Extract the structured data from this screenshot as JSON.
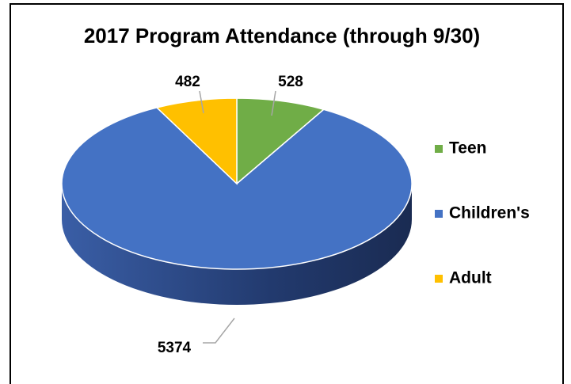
{
  "chart_data": {
    "type": "pie",
    "title": "2017 Program Attendance (through 9/30)",
    "categories": [
      "Teen",
      "Children's",
      "Adult"
    ],
    "values": [
      528,
      5374,
      482
    ],
    "colors": [
      "#70ad47",
      "#4472c4",
      "#ffc000"
    ],
    "legend": "right"
  }
}
